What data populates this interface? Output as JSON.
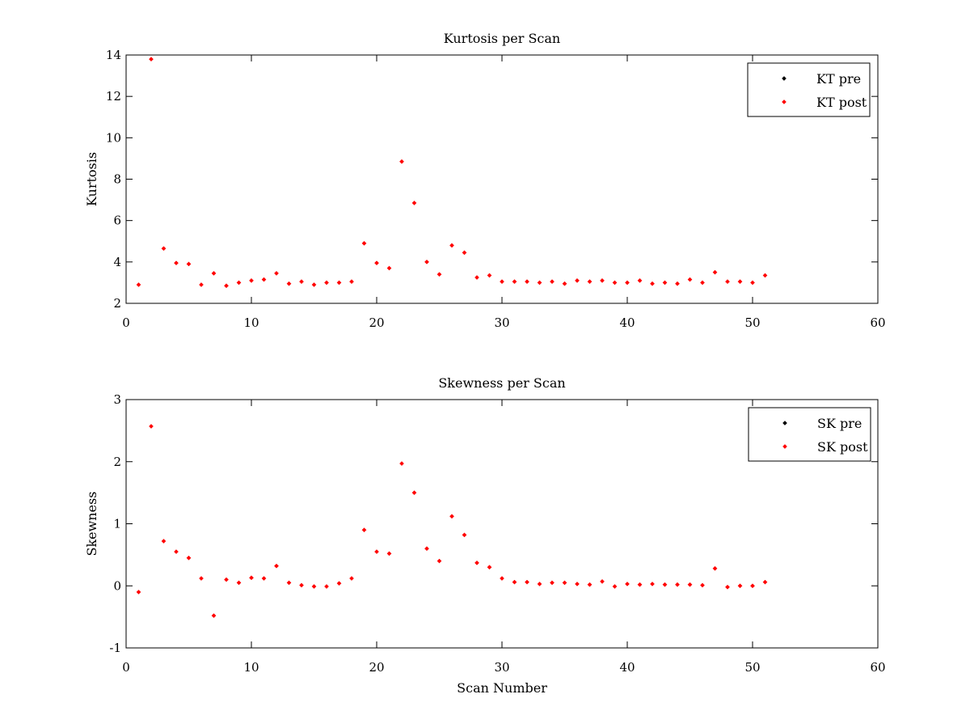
{
  "chart_data": [
    {
      "type": "scatter",
      "title": "Kurtosis per Scan",
      "xlabel": "",
      "ylabel": "Kurtosis",
      "xlim": [
        0,
        60
      ],
      "ylim": [
        2,
        14
      ],
      "xticks": [
        0,
        10,
        20,
        30,
        40,
        50,
        60
      ],
      "yticks": [
        2,
        4,
        6,
        8,
        10,
        12,
        14
      ],
      "grid": false,
      "legend_position": "top-right",
      "series": [
        {
          "name": "KT pre",
          "color": "#000000",
          "x": [],
          "y": []
        },
        {
          "name": "KT post",
          "color": "#ff0000",
          "x": [
            1,
            2,
            3,
            4,
            5,
            6,
            7,
            8,
            9,
            10,
            11,
            12,
            13,
            14,
            15,
            16,
            17,
            18,
            19,
            20,
            21,
            22,
            23,
            24,
            25,
            26,
            27,
            28,
            29,
            30,
            31,
            32,
            33,
            34,
            35,
            36,
            37,
            38,
            39,
            40,
            41,
            42,
            43,
            44,
            45,
            46,
            47,
            48,
            49,
            50,
            51
          ],
          "y": [
            2.9,
            13.8,
            4.65,
            3.95,
            3.9,
            2.9,
            3.45,
            2.85,
            3.0,
            3.1,
            3.15,
            3.45,
            2.95,
            3.05,
            2.9,
            3.0,
            3.0,
            3.05,
            4.9,
            3.95,
            3.7,
            8.85,
            6.85,
            4.0,
            3.4,
            4.8,
            4.45,
            3.25,
            3.35,
            3.05,
            3.05,
            3.05,
            3.0,
            3.05,
            2.95,
            3.1,
            3.05,
            3.1,
            3.0,
            3.0,
            3.1,
            2.95,
            3.0,
            2.95,
            3.15,
            3.0,
            3.5,
            3.05,
            3.05,
            3.0,
            3.35
          ]
        }
      ]
    },
    {
      "type": "scatter",
      "title": "Skewness per Scan",
      "xlabel": "Scan Number",
      "ylabel": "Skewness",
      "xlim": [
        0,
        60
      ],
      "ylim": [
        -1,
        3
      ],
      "xticks": [
        0,
        10,
        20,
        30,
        40,
        50,
        60
      ],
      "yticks": [
        -1,
        0,
        1,
        2,
        3
      ],
      "grid": false,
      "legend_position": "top-right",
      "series": [
        {
          "name": "SK pre",
          "color": "#000000",
          "x": [],
          "y": []
        },
        {
          "name": "SK post",
          "color": "#ff0000",
          "x": [
            1,
            2,
            3,
            4,
            5,
            6,
            7,
            8,
            9,
            10,
            11,
            12,
            13,
            14,
            15,
            16,
            17,
            18,
            19,
            20,
            21,
            22,
            23,
            24,
            25,
            26,
            27,
            28,
            29,
            30,
            31,
            32,
            33,
            34,
            35,
            36,
            37,
            38,
            39,
            40,
            41,
            42,
            43,
            44,
            45,
            46,
            47,
            48,
            49,
            50,
            51
          ],
          "y": [
            -0.1,
            2.57,
            0.72,
            0.55,
            0.45,
            0.12,
            -0.48,
            0.1,
            0.05,
            0.13,
            0.12,
            0.32,
            0.05,
            0.01,
            -0.01,
            -0.01,
            0.04,
            0.12,
            0.9,
            0.55,
            0.52,
            1.97,
            1.5,
            0.6,
            0.4,
            1.12,
            0.82,
            0.37,
            0.3,
            0.12,
            0.06,
            0.06,
            0.03,
            0.05,
            0.05,
            0.03,
            0.02,
            0.07,
            -0.01,
            0.03,
            0.02,
            0.03,
            0.02,
            0.02,
            0.02,
            0.01,
            0.28,
            -0.02,
            0.0,
            0.0,
            0.06
          ]
        }
      ]
    }
  ]
}
